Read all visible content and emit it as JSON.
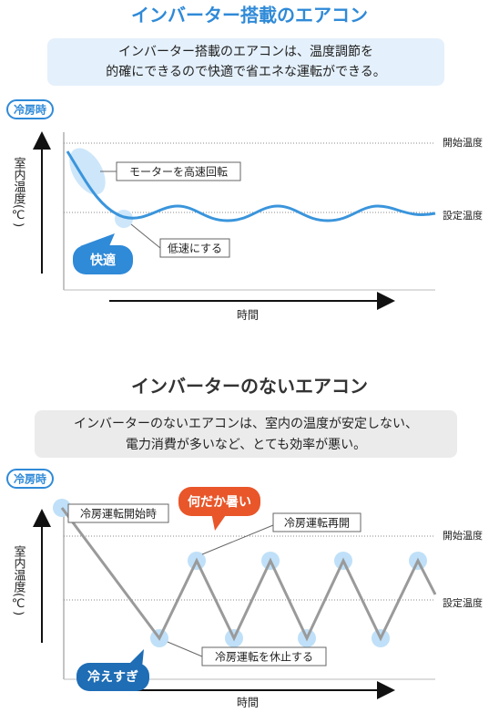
{
  "sections": [
    {
      "title": "インバーター搭載のエアコン",
      "description": [
        "インバーター搭載のエアコンは、温度調節を",
        "的確にできるので快適で省エネな運転ができる。"
      ],
      "mode_badge": "冷房時",
      "y_axis_label": "室内温度(℃)",
      "x_axis_label": "時間",
      "levels": [
        "開始温度",
        "設定温度"
      ],
      "callouts": [
        "モーターを高速回転",
        "低速にする"
      ],
      "bubbles": [
        "快適"
      ]
    },
    {
      "title": "インバーターのないエアコン",
      "description": [
        "インバーターのないエアコンは、室内の温度が安定しない、",
        "電力消費が多いなど、とても効率が悪い。"
      ],
      "mode_badge": "冷房時",
      "y_axis_label": "室内温度(℃)",
      "x_axis_label": "時間",
      "levels": [
        "開始温度",
        "設定温度"
      ],
      "callouts": [
        "冷房運転開始時",
        "冷房運転再開",
        "冷房運転を休止する"
      ],
      "bubbles": [
        "何だか暑い",
        "冷えすぎ"
      ]
    }
  ]
}
